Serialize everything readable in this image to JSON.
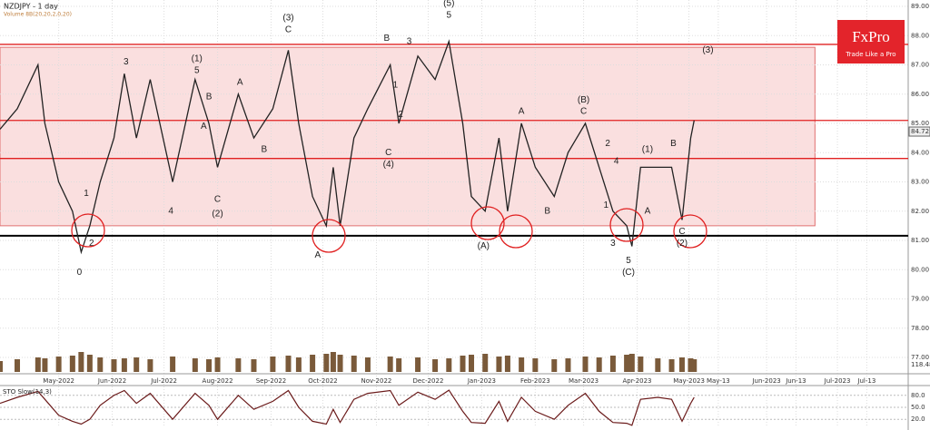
{
  "chart_data": {
    "type": "line",
    "title": "NZDJPY - 1 day",
    "subtitle": "Volume 8B(20,20,2,0,20)",
    "indicator_title": "STO Slow(14,3)",
    "logo": {
      "name": "FxPro",
      "tagline": "Trade Like a Pro"
    },
    "xlim": [
      -18,
      508
    ],
    "ylim": [
      77,
      89
    ],
    "yticks": [
      {
        "value": 77,
        "label": "77.00"
      },
      {
        "value": 78,
        "label": "78.00"
      },
      {
        "value": 79,
        "label": "79.00"
      },
      {
        "value": 80,
        "label": "80.00"
      },
      {
        "value": 81,
        "label": "81.00"
      },
      {
        "value": 82,
        "label": "82.00"
      },
      {
        "value": 83,
        "label": "83.00"
      },
      {
        "value": 84,
        "label": "84.00"
      },
      {
        "value": 85,
        "label": "85.00"
      },
      {
        "value": 86,
        "label": "86.00"
      },
      {
        "value": 87,
        "label": "87.00"
      },
      {
        "value": 88,
        "label": "88.00"
      },
      {
        "value": 89,
        "label": "89.00"
      }
    ],
    "xticks": [
      {
        "value": 16,
        "label": "May-2022"
      },
      {
        "value": 47,
        "label": "Jun-2022"
      },
      {
        "value": 77,
        "label": "Jul-2022"
      },
      {
        "value": 108,
        "label": "Aug-2022"
      },
      {
        "value": 139,
        "label": "Sep-2022"
      },
      {
        "value": 169,
        "label": "Oct-2022"
      },
      {
        "value": 200,
        "label": "Nov-2022"
      },
      {
        "value": 230,
        "label": "Dec-2022"
      },
      {
        "value": 261,
        "label": "Jan-2023"
      },
      {
        "value": 292,
        "label": "Feb-2023"
      },
      {
        "value": 320,
        "label": "Mar-2023"
      },
      {
        "value": 351,
        "label": "Apr-2023"
      },
      {
        "value": 381,
        "label": "May-2023"
      },
      {
        "value": 398,
        "label": "May-13"
      },
      {
        "value": 426,
        "label": "Jun-2023"
      },
      {
        "value": 443,
        "label": "Jun-13"
      },
      {
        "value": 467,
        "label": "Jul-2023"
      },
      {
        "value": 484,
        "label": "Jul-13"
      }
    ],
    "grid": true,
    "last_price": {
      "value": 84.72,
      "label": "84.72"
    },
    "levels": [
      {
        "value": 87.7,
        "color": "#e02020"
      },
      {
        "value": 85.1,
        "color": "#e02020"
      },
      {
        "value": 83.8,
        "color": "#e02020"
      },
      {
        "value": 81.16,
        "color": "#000000"
      }
    ],
    "zone": {
      "x": [
        -18,
        454
      ],
      "y": [
        81.5,
        87.6
      ],
      "color": "#f7c9c9"
    },
    "x": [
      -18,
      -8,
      4,
      8,
      16,
      24,
      29,
      34,
      40,
      48,
      54,
      61,
      69,
      82,
      95,
      103,
      108,
      120,
      129,
      140,
      149,
      155,
      163,
      171,
      175,
      179,
      187,
      195,
      208,
      213,
      224,
      234,
      242,
      250,
      255,
      263,
      271,
      276,
      284,
      292,
      303,
      311,
      321,
      329,
      337,
      345,
      348,
      353,
      363,
      371,
      377,
      382,
      384
    ],
    "series": [
      {
        "name": "NZDJPY",
        "color": "#222222",
        "values": [
          84.8,
          85.5,
          87.0,
          85.0,
          83.0,
          82.0,
          80.6,
          81.5,
          83.0,
          84.5,
          86.7,
          84.5,
          86.5,
          83.0,
          86.5,
          85.0,
          83.5,
          86.0,
          84.5,
          85.5,
          87.5,
          85.0,
          82.5,
          81.5,
          83.5,
          81.5,
          84.5,
          85.5,
          87.0,
          85.0,
          87.3,
          86.5,
          87.8,
          85.0,
          82.5,
          82.0,
          84.5,
          82.0,
          85.0,
          83.5,
          82.5,
          84.0,
          85.0,
          83.5,
          82.0,
          81.5,
          80.8,
          83.5,
          83.5,
          83.5,
          81.7,
          84.5,
          85.1
        ]
      }
    ],
    "volume": {
      "ylim": [
        0,
        150
      ],
      "label": "118.48",
      "color": "#7a5a3a",
      "values": [
        60,
        70,
        80,
        75,
        85,
        90,
        110,
        95,
        80,
        70,
        75,
        80,
        70,
        85,
        75,
        70,
        80,
        75,
        70,
        85,
        90,
        80,
        95,
        100,
        110,
        95,
        90,
        80,
        85,
        75,
        80,
        70,
        75,
        90,
        95,
        100,
        85,
        90,
        80,
        75,
        70,
        75,
        85,
        80,
        90,
        95,
        100,
        85,
        75,
        70,
        80,
        75,
        70
      ]
    },
    "stochastic": {
      "ylim": [
        0,
        100
      ],
      "yticks": [
        {
          "value": 20,
          "label": "20.0"
        },
        {
          "value": 50,
          "label": "50.0"
        },
        {
          "value": 80,
          "label": "80.0"
        }
      ],
      "color": "#6b1b1b",
      "values": [
        60,
        75,
        90,
        70,
        30,
        15,
        8,
        20,
        55,
        80,
        92,
        60,
        85,
        20,
        85,
        55,
        20,
        80,
        45,
        65,
        92,
        50,
        15,
        8,
        45,
        12,
        70,
        85,
        92,
        55,
        88,
        70,
        93,
        40,
        12,
        10,
        65,
        15,
        75,
        40,
        20,
        55,
        85,
        40,
        12,
        10,
        5,
        70,
        75,
        70,
        15,
        60,
        75
      ]
    },
    "annotations": [
      {
        "text": "0",
        "x": 28,
        "y": 79.9
      },
      {
        "text": "1",
        "x": 32,
        "y": 82.6
      },
      {
        "text": "2",
        "x": 35,
        "y": 80.9
      },
      {
        "text": "3",
        "x": 55,
        "y": 87.1
      },
      {
        "text": "(1)",
        "x": 96,
        "y": 87.2
      },
      {
        "text": "5",
        "x": 96,
        "y": 86.8
      },
      {
        "text": "4",
        "x": 81,
        "y": 82.0
      },
      {
        "text": "A",
        "x": 100,
        "y": 84.9
      },
      {
        "text": "B",
        "x": 103,
        "y": 85.9
      },
      {
        "text": "C",
        "x": 108,
        "y": 82.4
      },
      {
        "text": "(2)",
        "x": 108,
        "y": 81.9
      },
      {
        "text": "A",
        "x": 121,
        "y": 86.4
      },
      {
        "text": "B",
        "x": 135,
        "y": 84.1
      },
      {
        "text": "(3)",
        "x": 149,
        "y": 88.6
      },
      {
        "text": "C",
        "x": 149,
        "y": 88.2
      },
      {
        "text": "A",
        "x": 166,
        "y": 80.5
      },
      {
        "text": "C",
        "x": 207,
        "y": 84.0
      },
      {
        "text": "(4)",
        "x": 207,
        "y": 83.6
      },
      {
        "text": "B",
        "x": 206,
        "y": 87.9
      },
      {
        "text": "3",
        "x": 219,
        "y": 87.8
      },
      {
        "text": "1",
        "x": 211,
        "y": 86.3
      },
      {
        "text": "2",
        "x": 214,
        "y": 85.3
      },
      {
        "text": "(5)",
        "x": 242,
        "y": 89.1
      },
      {
        "text": "5",
        "x": 242,
        "y": 88.7
      },
      {
        "text": "(A)",
        "x": 262,
        "y": 80.8
      },
      {
        "text": "A",
        "x": 284,
        "y": 85.4
      },
      {
        "text": "B",
        "x": 299,
        "y": 82.0
      },
      {
        "text": "(B)",
        "x": 320,
        "y": 85.8
      },
      {
        "text": "C",
        "x": 320,
        "y": 85.4
      },
      {
        "text": "2",
        "x": 334,
        "y": 84.3
      },
      {
        "text": "4",
        "x": 339,
        "y": 83.7
      },
      {
        "text": "1",
        "x": 333,
        "y": 82.2
      },
      {
        "text": "3",
        "x": 337,
        "y": 80.9
      },
      {
        "text": "5",
        "x": 346,
        "y": 80.3
      },
      {
        "text": "(C)",
        "x": 346,
        "y": 79.9
      },
      {
        "text": "A",
        "x": 357,
        "y": 82.0
      },
      {
        "text": "(1)",
        "x": 357,
        "y": 84.1
      },
      {
        "text": "B",
        "x": 372,
        "y": 84.3
      },
      {
        "text": "C",
        "x": 377,
        "y": 81.3
      },
      {
        "text": "(2)",
        "x": 377,
        "y": 80.9
      },
      {
        "text": "(3)",
        "x": 392,
        "y": 87.5
      }
    ]
  }
}
